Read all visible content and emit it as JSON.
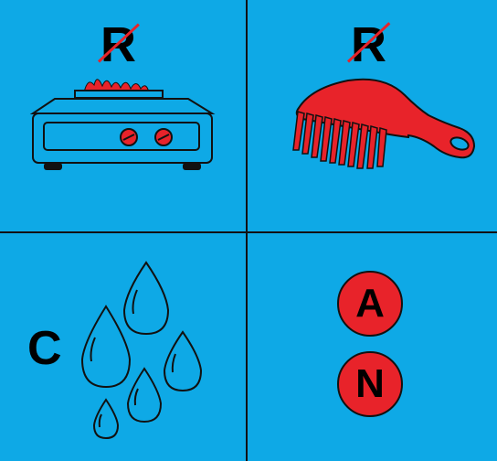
{
  "puzzle": {
    "top_left": {
      "letter": "R",
      "removed": true,
      "icon": "stove-icon"
    },
    "top_right": {
      "letter": "R",
      "removed": true,
      "icon": "comb-icon"
    },
    "bottom_left": {
      "letter": "C",
      "icon": "water-drops-icon"
    },
    "bottom_right": {
      "letters": [
        "A",
        "N"
      ]
    }
  },
  "colors": {
    "background": "#0ea9e6",
    "accent": "#e8232a",
    "stroke": "#111111"
  }
}
